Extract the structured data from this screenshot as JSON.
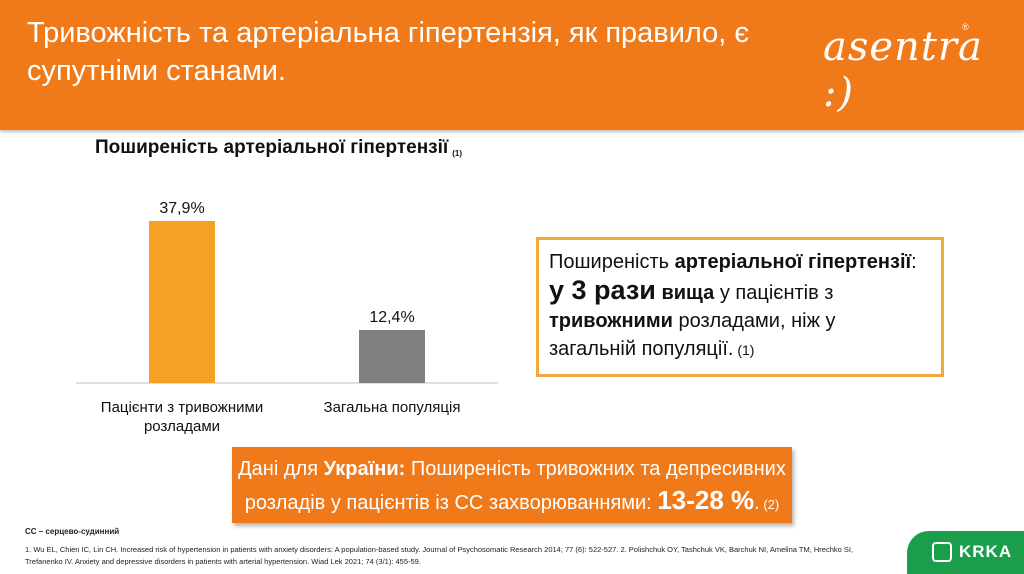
{
  "header": {
    "title": "Тривожність та артеріальна гіпертензія, як правило, є супутніми станами.",
    "brand": "asentra :)",
    "brand_reg": "®"
  },
  "chart_title": {
    "text": "Поширеність артеріальної гіпертензії",
    "ref": "(1)"
  },
  "chart_data": {
    "type": "bar",
    "title": "Поширеність артеріальної гіпертензії",
    "categories": [
      "Пацієнти з тривожними розладами",
      "Загальна популяція"
    ],
    "values": [
      37.9,
      12.4
    ],
    "value_labels": [
      "37,9%",
      "12,4%"
    ],
    "unit": "%",
    "colors": [
      "#f4a125",
      "#7f7f7f"
    ],
    "ylim": [
      0,
      40
    ],
    "grid": false,
    "legend": "none"
  },
  "categories": {
    "c0_line1": "Пацієнти з тривожними",
    "c0_line2": "розладами",
    "c1": "Загальна популяція"
  },
  "callout": {
    "p1": "Поширеність ",
    "p1_bold": "артеріальної гіпертензії",
    "p1_end": ":",
    "big": "у 3 рази",
    "bold2": " вища",
    "p2": " у пацієнтів з",
    "bold3": "тривожними",
    "p3": " розладами, ніж у",
    "p4": "загальній популяції.",
    "ref": " (1)",
    "border_color": "#f2a93b"
  },
  "banner": {
    "p1": "Дані для ",
    "bold1": "України:",
    "p2": " Поширеність тривожних та депресивних",
    "p3": "розладів у пацієнтів із СС захворюваннями: ",
    "big": "13-28 %",
    "p4": ".",
    "ref": " (2)"
  },
  "footnotes": {
    "abbr": "СС – серцево-судинний",
    "refs": "1. Wu EL, Chien IC, Lin CH. Increased risk of hypertension in patients with anxiety disorders: A population-based study. Journal of Psychosomatic Research 2014; 77 (6): 522-527. 2. Polishchuk OY, Tashchuk VK, Barchuk NI, Amelina TM, Hrechko SI, Trefanenko IV. Anxiety and depressive disorders in patients with arterial hypertension. Wiad Lek 2021; 74 (3/1): 455-59."
  },
  "logo": {
    "text": "KRKA",
    "icon": "krka-logo-icon"
  },
  "colors": {
    "accent": "#f07a1a",
    "bar_primary": "#f4a125",
    "bar_secondary": "#7f7f7f",
    "logo_green": "#1a9e4b"
  }
}
